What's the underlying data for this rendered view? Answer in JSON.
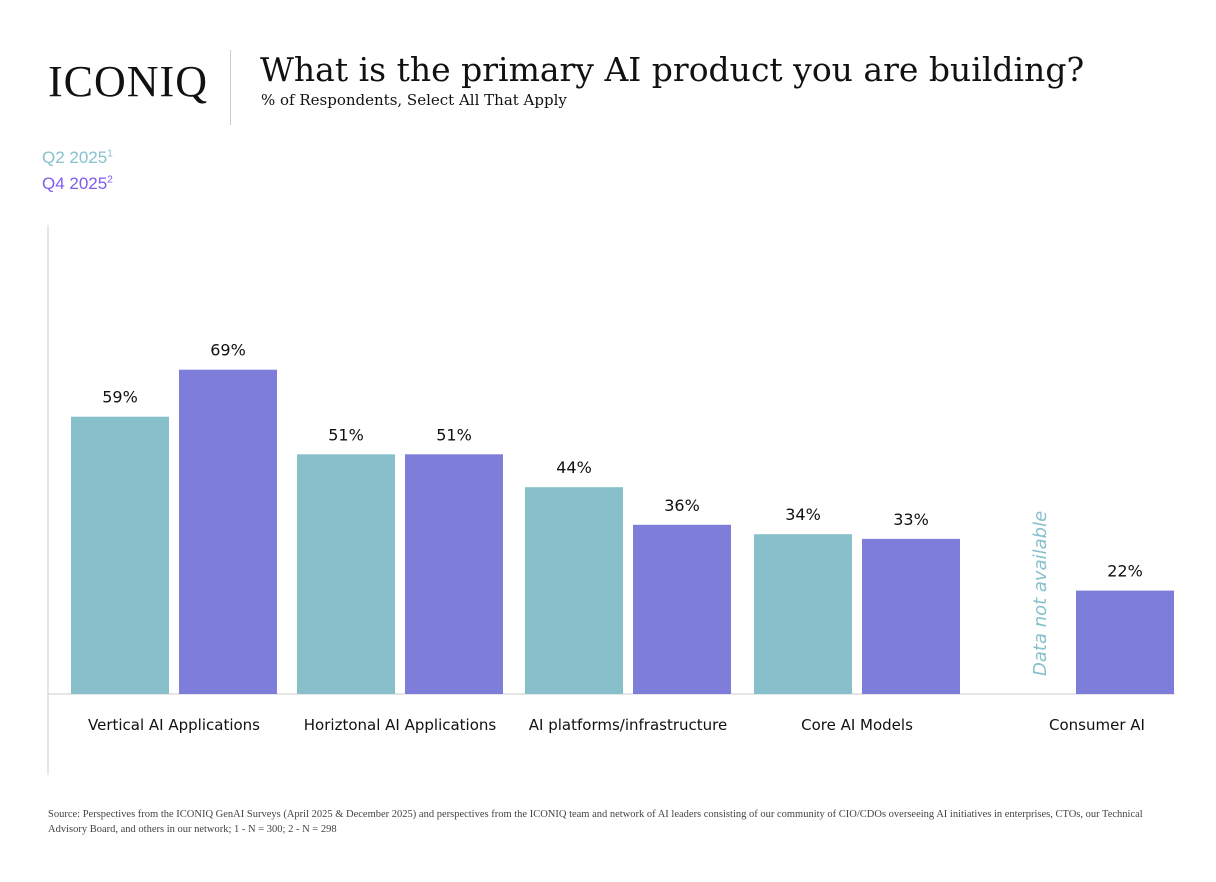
{
  "brand": "ICONIQ",
  "colors": {
    "q2": "#87BFCB",
    "q4": "#7E7EDA",
    "q2_text": "#87C1CE",
    "q4_text": "#7B5CF0"
  },
  "chart_data": {
    "type": "bar",
    "title": "What is the primary AI product you are building?",
    "subtitle": "% of Respondents, Select All That Apply",
    "categories": [
      "Vertical AI Applications",
      "Horiztonal AI Applications",
      "AI platforms/infrastructure",
      "Core AI Models",
      "Consumer AI"
    ],
    "series": [
      {
        "name": "Q2 2025",
        "sup": "1",
        "values": [
          59,
          51,
          44,
          34,
          null
        ],
        "labels": [
          "59%",
          "51%",
          "44%",
          "34%",
          ""
        ]
      },
      {
        "name": "Q4 2025",
        "sup": "2",
        "values": [
          69,
          51,
          36,
          33,
          22
        ],
        "labels": [
          "69%",
          "51%",
          "36%",
          "33%",
          "22%"
        ]
      }
    ],
    "annotation": "Data not available",
    "ylim": [
      0,
      100
    ],
    "grid": false,
    "legend": "top-left"
  },
  "footnote": "Source: Perspectives from the ICONIQ GenAI Surveys (April 2025 & December 2025) and perspectives from the ICONIQ team and network of AI leaders consisting of our community of CIO/CDOs overseeing AI initiatives in enterprises, CTOs, our Technical Advisory Board, and others in our network; 1 - N = 300; 2 - N = 298"
}
